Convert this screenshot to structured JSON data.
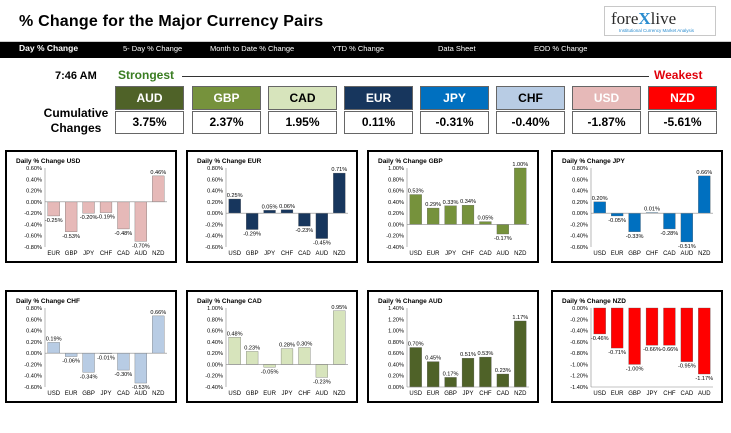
{
  "header": {
    "title": "% Change for the Major Currency Pairs",
    "logo": "forexlive",
    "logo_prefix": "fore",
    "logo_x": "X",
    "logo_suffix": "live",
    "logo_tagline": "Institutional Currency Market Analysis"
  },
  "nav": {
    "items": [
      {
        "label": "Day % Change",
        "active": true
      },
      {
        "label": "5- Day % Change",
        "active": false
      },
      {
        "label": "Month to Date % Change",
        "active": false
      },
      {
        "label": "YTD % Change",
        "active": false
      },
      {
        "label": "Data Sheet",
        "active": false
      },
      {
        "label": "EOD % Change",
        "active": false
      }
    ]
  },
  "summary": {
    "time": "7:46 AM",
    "strongest_label": "Strongest",
    "weakest_label": "Weakest",
    "cumulative_label_1": "Cumulative",
    "cumulative_label_2": "Changes",
    "currencies": [
      {
        "code": "AUD",
        "value": "3.75%",
        "bg": "#4f6228",
        "fg": "#ffffff"
      },
      {
        "code": "GBP",
        "value": "2.37%",
        "bg": "#76923c",
        "fg": "#ffffff"
      },
      {
        "code": "CAD",
        "value": "1.95%",
        "bg": "#d7e4bc",
        "fg": "#000000"
      },
      {
        "code": "EUR",
        "value": "0.11%",
        "bg": "#17365d",
        "fg": "#ffffff"
      },
      {
        "code": "JPY",
        "value": "-0.31%",
        "bg": "#0070c0",
        "fg": "#ffffff"
      },
      {
        "code": "CHF",
        "value": "-0.40%",
        "bg": "#b8cce4",
        "fg": "#000000"
      },
      {
        "code": "USD",
        "value": "-1.87%",
        "bg": "#e6b9b8",
        "fg": "#ffffff"
      },
      {
        "code": "NZD",
        "value": "-5.61%",
        "bg": "#ff0000",
        "fg": "#ffffff"
      }
    ]
  },
  "chart_data": [
    {
      "type": "bar",
      "title": "Daily % Change USD",
      "categories": [
        "EUR",
        "GBP",
        "JPY",
        "CHF",
        "CAD",
        "AUD",
        "NZD"
      ],
      "values": [
        -0.25,
        -0.53,
        -0.2,
        -0.19,
        -0.48,
        -0.7,
        0.46
      ],
      "labels": [
        "-0.25%",
        "-0.53%",
        "-0.20%",
        "-0.19%",
        "-0.48%",
        "-0.70%",
        "0.46%"
      ],
      "ylim": [
        -0.8,
        0.6
      ],
      "ticks": [
        "0.60%",
        "0.40%",
        "0.20%",
        "0.00%",
        "-0.20%",
        "-0.40%",
        "-0.60%",
        "-0.80%"
      ],
      "tick_values": [
        0.6,
        0.4,
        0.2,
        0.0,
        -0.2,
        -0.4,
        -0.6,
        -0.8
      ],
      "colors": [
        "#e6b9b8",
        "#e6b9b8",
        "#e6b9b8",
        "#e6b9b8",
        "#e6b9b8",
        "#e6b9b8",
        "#e6b9b8"
      ]
    },
    {
      "type": "bar",
      "title": "Daily % Change EUR",
      "categories": [
        "USD",
        "GBP",
        "JPY",
        "CHF",
        "CAD",
        "AUD",
        "NZD"
      ],
      "values": [
        0.25,
        -0.29,
        0.05,
        0.06,
        -0.23,
        -0.45,
        0.71
      ],
      "labels": [
        "0.25%",
        "-0.29%",
        "0.05%",
        "0.06%",
        "-0.23%",
        "-0.45%",
        "0.71%"
      ],
      "ylim": [
        -0.6,
        0.8
      ],
      "ticks": [
        "0.80%",
        "0.60%",
        "0.40%",
        "0.20%",
        "0.00%",
        "-0.20%",
        "-0.40%",
        "-0.60%"
      ],
      "tick_values": [
        0.8,
        0.6,
        0.4,
        0.2,
        0.0,
        -0.2,
        -0.4,
        -0.6
      ],
      "colors": [
        "#17365d",
        "#17365d",
        "#17365d",
        "#17365d",
        "#17365d",
        "#17365d",
        "#17365d"
      ]
    },
    {
      "type": "bar",
      "title": "Daily % Change GBP",
      "categories": [
        "USD",
        "EUR",
        "JPY",
        "CHF",
        "CAD",
        "AUD",
        "NZD"
      ],
      "values": [
        0.53,
        0.29,
        0.33,
        0.34,
        0.05,
        -0.17,
        1.0
      ],
      "labels": [
        "0.53%",
        "0.29%",
        "0.33%",
        "0.34%",
        "0.05%",
        "-0.17%",
        "1.00%"
      ],
      "ylim": [
        -0.4,
        1.0
      ],
      "ticks": [
        "1.00%",
        "0.80%",
        "0.60%",
        "0.40%",
        "0.20%",
        "0.00%",
        "-0.20%",
        "-0.40%"
      ],
      "tick_values": [
        1.0,
        0.8,
        0.6,
        0.4,
        0.2,
        0.0,
        -0.2,
        -0.4
      ],
      "colors": [
        "#76923c",
        "#76923c",
        "#76923c",
        "#76923c",
        "#76923c",
        "#76923c",
        "#76923c"
      ]
    },
    {
      "type": "bar",
      "title": "Daily % Change JPY",
      "categories": [
        "USD",
        "EUR",
        "GBP",
        "CHF",
        "CAD",
        "AUD",
        "NZD"
      ],
      "values": [
        0.2,
        -0.05,
        -0.33,
        0.01,
        -0.28,
        -0.51,
        0.66
      ],
      "labels": [
        "0.20%",
        "-0.05%",
        "-0.33%",
        "0.01%",
        "-0.28%",
        "-0.51%",
        "0.66%"
      ],
      "ylim": [
        -0.6,
        0.8
      ],
      "ticks": [
        "0.80%",
        "0.60%",
        "0.40%",
        "0.20%",
        "0.00%",
        "-0.20%",
        "-0.40%",
        "-0.60%"
      ],
      "tick_values": [
        0.8,
        0.6,
        0.4,
        0.2,
        0.0,
        -0.2,
        -0.4,
        -0.6
      ],
      "colors": [
        "#0070c0",
        "#0070c0",
        "#0070c0",
        "#0070c0",
        "#0070c0",
        "#0070c0",
        "#0070c0"
      ]
    },
    {
      "type": "bar",
      "title": "Daily % Change CHF",
      "categories": [
        "USD",
        "EUR",
        "GBP",
        "JPY",
        "CAD",
        "AUD",
        "NZD"
      ],
      "values": [
        0.19,
        -0.06,
        -0.34,
        -0.01,
        -0.3,
        -0.53,
        0.66
      ],
      "labels": [
        "0.19%",
        "-0.06%",
        "-0.34%",
        "-0.01%",
        "-0.30%",
        "-0.53%",
        "0.66%"
      ],
      "ylim": [
        -0.6,
        0.8
      ],
      "ticks": [
        "0.80%",
        "0.60%",
        "0.40%",
        "0.20%",
        "0.00%",
        "-0.20%",
        "-0.40%",
        "-0.60%"
      ],
      "tick_values": [
        0.8,
        0.6,
        0.4,
        0.2,
        0.0,
        -0.2,
        -0.4,
        -0.6
      ],
      "colors": [
        "#b8cce4",
        "#b8cce4",
        "#b8cce4",
        "#b8cce4",
        "#b8cce4",
        "#b8cce4",
        "#b8cce4"
      ]
    },
    {
      "type": "bar",
      "title": "Daily % Change CAD",
      "categories": [
        "USD",
        "GBP",
        "EUR",
        "JPY",
        "CHF",
        "AUD",
        "NZD"
      ],
      "values": [
        0.48,
        0.23,
        -0.05,
        0.28,
        0.3,
        -0.23,
        0.95
      ],
      "labels": [
        "0.48%",
        "0.23%",
        "-0.05%",
        "0.28%",
        "0.30%",
        "-0.23%",
        "0.95%"
      ],
      "ylim": [
        -0.4,
        1.0
      ],
      "ticks": [
        "1.00%",
        "0.80%",
        "0.60%",
        "0.40%",
        "0.20%",
        "0.00%",
        "-0.20%",
        "-0.40%"
      ],
      "tick_values": [
        1.0,
        0.8,
        0.6,
        0.4,
        0.2,
        0.0,
        -0.2,
        -0.4
      ],
      "colors": [
        "#d7e4bc",
        "#d7e4bc",
        "#d7e4bc",
        "#d7e4bc",
        "#d7e4bc",
        "#d7e4bc",
        "#d7e4bc"
      ]
    },
    {
      "type": "bar",
      "title": "Daily % Change AUD",
      "categories": [
        "USD",
        "EUR",
        "GBP",
        "JPY",
        "CHF",
        "CAD",
        "NZD"
      ],
      "values": [
        0.7,
        0.45,
        0.17,
        0.51,
        0.53,
        0.23,
        1.17
      ],
      "labels": [
        "0.70%",
        "0.45%",
        "0.17%",
        "0.51%",
        "0.53%",
        "0.23%",
        "1.17%"
      ],
      "ylim": [
        0.0,
        1.4
      ],
      "ticks": [
        "1.40%",
        "1.20%",
        "1.00%",
        "0.80%",
        "0.60%",
        "0.40%",
        "0.20%",
        "0.00%"
      ],
      "tick_values": [
        1.4,
        1.2,
        1.0,
        0.8,
        0.6,
        0.4,
        0.2,
        0.0
      ],
      "colors": [
        "#4f6228",
        "#4f6228",
        "#4f6228",
        "#4f6228",
        "#4f6228",
        "#4f6228",
        "#4f6228"
      ]
    },
    {
      "type": "bar",
      "title": "Daily % Change NZD",
      "categories": [
        "USD",
        "EUR",
        "GBP",
        "JPY",
        "CHF",
        "CAD",
        "AUD"
      ],
      "values": [
        -0.46,
        -0.71,
        -1.0,
        -0.66,
        -0.66,
        -0.95,
        -1.17
      ],
      "labels": [
        "-0.46%",
        "-0.71%",
        "-1.00%",
        "-0.66%",
        "-0.66%",
        "-0.95%",
        "-1.17%"
      ],
      "ylim": [
        -1.4,
        0.0
      ],
      "ticks": [
        "0.00%",
        "-0.20%",
        "-0.40%",
        "-0.60%",
        "-0.80%",
        "-1.00%",
        "-1.20%",
        "-1.40%"
      ],
      "tick_values": [
        0.0,
        -0.2,
        -0.4,
        -0.6,
        -0.8,
        -1.0,
        -1.2,
        -1.4
      ],
      "colors": [
        "#ff0000",
        "#ff0000",
        "#ff0000",
        "#ff0000",
        "#ff0000",
        "#ff0000",
        "#ff0000"
      ]
    }
  ]
}
